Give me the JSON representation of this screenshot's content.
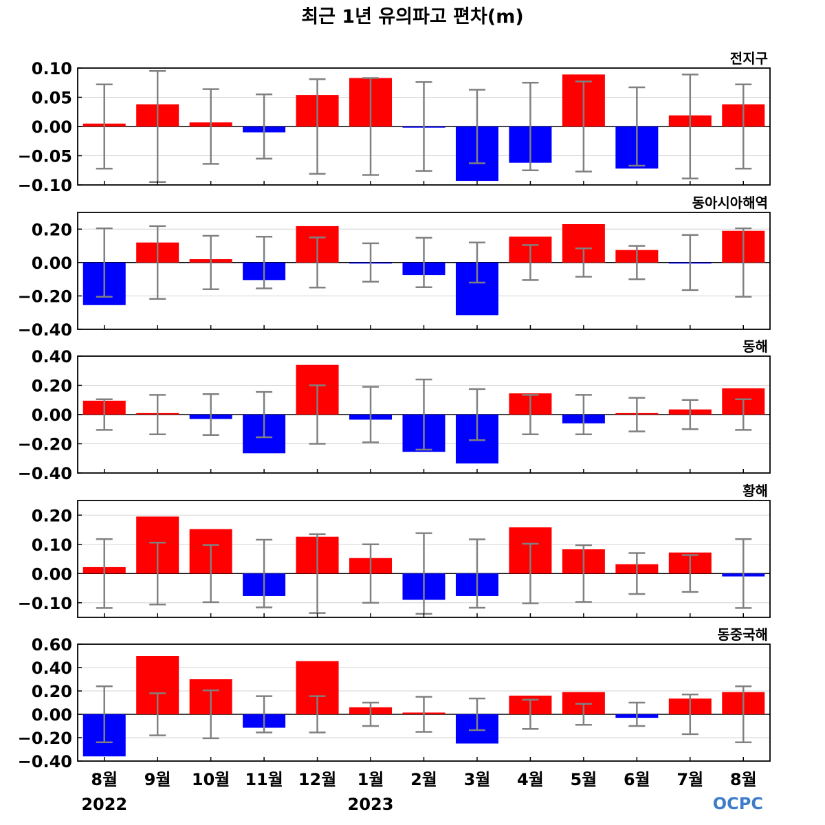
{
  "title": "최근 1년 유의파고 편차(m)",
  "logo": "OCPC",
  "colors": {
    "positive": "#ff0000",
    "negative": "#0000ff",
    "error_bar": "#808080",
    "grid": "#d3d3d3"
  },
  "chart_data": [
    {
      "type": "bar",
      "title": "전지구",
      "categories": [
        "8월",
        "9월",
        "10월",
        "11월",
        "12월",
        "1월",
        "2월",
        "3월",
        "4월",
        "5월",
        "6월",
        "7월",
        "8월"
      ],
      "years": [
        {
          "label": "2022",
          "category_index": 0
        },
        {
          "label": "2023",
          "category_index": 5
        }
      ],
      "values": [
        0.005,
        0.038,
        0.007,
        -0.01,
        0.054,
        0.083,
        -0.002,
        -0.093,
        -0.062,
        0.089,
        -0.072,
        0.019,
        0.038
      ],
      "error": [
        0.072,
        0.095,
        0.064,
        0.055,
        0.081,
        0.083,
        0.076,
        0.063,
        0.075,
        0.077,
        0.067,
        0.089,
        0.072
      ],
      "ylim": [
        -0.1,
        0.1
      ],
      "yticks": [
        -0.1,
        -0.05,
        0.0,
        0.05,
        0.1
      ],
      "ytick_labels": [
        "−0.10",
        "−0.05",
        "0.00",
        "0.05",
        "0.10"
      ],
      "grid": true
    },
    {
      "type": "bar",
      "title": "동아시아해역",
      "categories": [
        "8월",
        "9월",
        "10월",
        "11월",
        "12월",
        "1월",
        "2월",
        "3월",
        "4월",
        "5월",
        "6월",
        "7월",
        "8월"
      ],
      "values": [
        -0.255,
        0.12,
        0.02,
        -0.105,
        0.218,
        -0.005,
        -0.075,
        -0.315,
        0.155,
        0.23,
        0.075,
        -0.005,
        0.19
      ],
      "error": [
        0.205,
        0.218,
        0.16,
        0.155,
        0.15,
        0.115,
        0.148,
        0.12,
        0.105,
        0.085,
        0.1,
        0.165,
        0.205
      ],
      "ylim": [
        -0.4,
        0.3
      ],
      "yticks": [
        -0.4,
        -0.2,
        0.0,
        0.2
      ],
      "ytick_labels": [
        "−0.40",
        "−0.20",
        "0.00",
        "0.20"
      ],
      "grid": true
    },
    {
      "type": "bar",
      "title": "동해",
      "categories": [
        "8월",
        "9월",
        "10월",
        "11월",
        "12월",
        "1월",
        "2월",
        "3월",
        "4월",
        "5월",
        "6월",
        "7월",
        "8월"
      ],
      "values": [
        0.095,
        0.01,
        -0.03,
        -0.265,
        0.34,
        -0.035,
        -0.255,
        -0.335,
        0.145,
        -0.06,
        0.01,
        0.035,
        0.18
      ],
      "error": [
        0.105,
        0.135,
        0.14,
        0.155,
        0.2,
        0.19,
        0.24,
        0.175,
        0.135,
        0.135,
        0.115,
        0.1,
        0.105
      ],
      "ylim": [
        -0.4,
        0.4
      ],
      "yticks": [
        -0.4,
        -0.2,
        0.0,
        0.2,
        0.4
      ],
      "ytick_labels": [
        "−0.40",
        "−0.20",
        "0.00",
        "0.20",
        "0.40"
      ],
      "grid": true
    },
    {
      "type": "bar",
      "title": "황해",
      "categories": [
        "8월",
        "9월",
        "10월",
        "11월",
        "12월",
        "1월",
        "2월",
        "3월",
        "4월",
        "5월",
        "6월",
        "7월",
        "8월"
      ],
      "values": [
        0.022,
        0.195,
        0.152,
        -0.077,
        0.126,
        0.053,
        -0.09,
        -0.077,
        0.158,
        0.083,
        0.032,
        0.072,
        -0.01
      ],
      "error": [
        0.118,
        0.106,
        0.098,
        0.116,
        0.135,
        0.1,
        0.138,
        0.117,
        0.102,
        0.097,
        0.07,
        0.063,
        0.118
      ],
      "ylim": [
        -0.15,
        0.25
      ],
      "yticks": [
        -0.1,
        0.0,
        0.1,
        0.2
      ],
      "ytick_labels": [
        "−0.10",
        "0.00",
        "0.10",
        "0.20"
      ],
      "grid": true
    },
    {
      "type": "bar",
      "title": "동중국해",
      "categories": [
        "8월",
        "9월",
        "10월",
        "11월",
        "12월",
        "1월",
        "2월",
        "3월",
        "4월",
        "5월",
        "6월",
        "7월",
        "8월"
      ],
      "values": [
        -0.36,
        0.5,
        0.3,
        -0.115,
        0.455,
        0.06,
        0.015,
        -0.25,
        0.16,
        0.19,
        -0.03,
        0.135,
        0.19
      ],
      "error": [
        0.24,
        0.18,
        0.205,
        0.155,
        0.155,
        0.1,
        0.15,
        0.135,
        0.125,
        0.09,
        0.1,
        0.17,
        0.24
      ],
      "ylim": [
        -0.4,
        0.6
      ],
      "yticks": [
        -0.4,
        -0.2,
        0.0,
        0.2,
        0.4,
        0.6
      ],
      "ytick_labels": [
        "−0.40",
        "−0.20",
        "0.00",
        "0.20",
        "0.40",
        "0.60"
      ],
      "grid": true
    }
  ]
}
